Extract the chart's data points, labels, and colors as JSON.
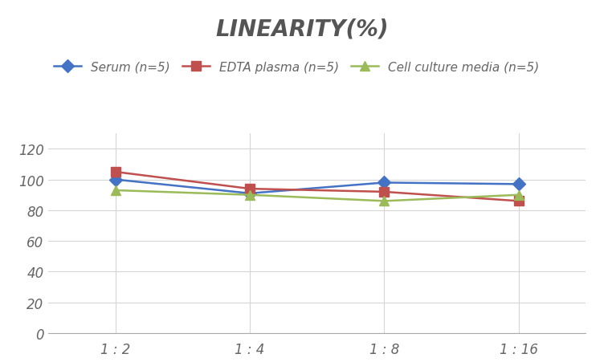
{
  "title": "LINEARITY(%)",
  "x_labels": [
    "1 : 2",
    "1 : 4",
    "1 : 8",
    "1 : 16"
  ],
  "x_positions": [
    0,
    1,
    2,
    3
  ],
  "series": [
    {
      "label": "Serum (n=5)",
      "color": "#4472C4",
      "marker": "D",
      "values": [
        100,
        91,
        98,
        97
      ]
    },
    {
      "label": "EDTA plasma (n=5)",
      "color": "#C0504D",
      "marker": "s",
      "values": [
        105,
        94,
        92,
        86
      ]
    },
    {
      "label": "Cell culture media (n=5)",
      "color": "#9BBB59",
      "marker": "^",
      "values": [
        93,
        90,
        86,
        90
      ]
    }
  ],
  "ylim": [
    0,
    130
  ],
  "yticks": [
    0,
    20,
    40,
    60,
    80,
    100,
    120
  ],
  "background_color": "#ffffff",
  "grid_color": "#d5d5d5",
  "title_fontsize": 20,
  "legend_fontsize": 11,
  "tick_fontsize": 12,
  "tick_color": "#666666",
  "title_color": "#555555",
  "line_width": 1.8,
  "marker_size": 8
}
